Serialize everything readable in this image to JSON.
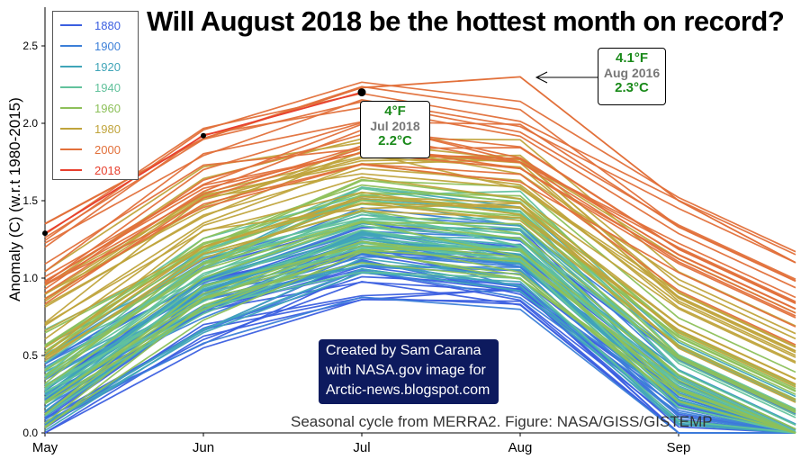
{
  "chart_data": {
    "type": "line",
    "title": "Will August 2018 be the hottest month on record?",
    "ylabel": "Anomaly (C) (w.r.t 1980-2015)",
    "xlabel": "",
    "categories": [
      "May",
      "Jun",
      "Jul",
      "Aug",
      "Sep"
    ],
    "ylim": [
      0.0,
      2.75
    ],
    "yticks": [
      "0.0",
      "0.5",
      "1.0",
      "1.5",
      "2.0",
      "2.5"
    ],
    "legend_position": "top-left",
    "legend": [
      {
        "name": "1880",
        "color": "#3b5fe0"
      },
      {
        "name": "1900",
        "color": "#3c7fd8"
      },
      {
        "name": "1920",
        "color": "#40a5b8"
      },
      {
        "name": "1940",
        "color": "#62c29c"
      },
      {
        "name": "1960",
        "color": "#8dc05a"
      },
      {
        "name": "1980",
        "color": "#c0a43c"
      },
      {
        "name": "2000",
        "color": "#e2703a"
      },
      {
        "name": "2018",
        "color": "#e8402e"
      }
    ],
    "bands": [
      {
        "name": "1880-1899",
        "color": "#3b5fe0",
        "count": 20,
        "profile": [
          0.2,
          0.85,
          1.15,
          1.05,
          0.2
        ]
      },
      {
        "name": "1900-1919",
        "color": "#3c7fd8",
        "count": 20,
        "profile": [
          0.25,
          0.9,
          1.2,
          1.1,
          0.25
        ]
      },
      {
        "name": "1920-1939",
        "color": "#40a5b8",
        "count": 20,
        "profile": [
          0.3,
          0.95,
          1.3,
          1.2,
          0.3
        ]
      },
      {
        "name": "1940-1959",
        "color": "#62c29c",
        "count": 20,
        "profile": [
          0.35,
          1.0,
          1.35,
          1.25,
          0.35
        ]
      },
      {
        "name": "1960-1979",
        "color": "#8dc05a",
        "count": 20,
        "profile": [
          0.35,
          1.05,
          1.4,
          1.3,
          0.45
        ]
      },
      {
        "name": "1980-1999",
        "color": "#c0a43c",
        "count": 20,
        "profile": [
          0.75,
          1.4,
          1.7,
          1.6,
          0.8
        ]
      },
      {
        "name": "2000-2017",
        "color": "#e2703a",
        "count": 18,
        "profile": [
          1.05,
          1.7,
          1.95,
          1.85,
          1.2
        ]
      }
    ],
    "highlight_series": [
      {
        "name": "2016",
        "color": "#e2703a",
        "values": [
          1.35,
          1.9,
          2.23,
          2.3,
          1.5
        ]
      },
      {
        "name": "2018",
        "color": "#e8402e",
        "values": [
          1.29,
          1.92,
          2.2
        ]
      }
    ],
    "markers": [
      {
        "series": "2018",
        "x": "May",
        "y": 1.29,
        "size": "small"
      },
      {
        "series": "2018",
        "x": "Jun",
        "y": 1.92,
        "size": "small"
      },
      {
        "series": "2018",
        "x": "Jul",
        "y": 2.2,
        "size": "large"
      }
    ],
    "annotations": [
      {
        "id": "jul2018",
        "fahrenheit": "4°F",
        "label": "Jul 2018",
        "celsius": "2.2°C"
      },
      {
        "id": "aug2016",
        "fahrenheit": "4.1°F",
        "label": "Aug 2016",
        "celsius": "2.3°C"
      }
    ]
  },
  "credit": {
    "line1": "Created by Sam Carana",
    "line2": "with NASA.gov image for",
    "line3": "Arctic-news.blogspot.com"
  },
  "source_note": "Seasonal cycle from MERRA2. Figure: NASA/GISS/GISTEMP"
}
